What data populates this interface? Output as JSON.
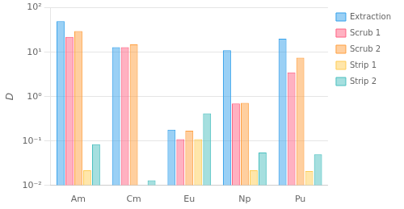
{
  "chart_data": {
    "type": "bar",
    "categories": [
      "Am",
      "Cm",
      "Eu",
      "Np",
      "Pu"
    ],
    "series": [
      {
        "name": "Extraction",
        "values": [
          50,
          13,
          0.18,
          11,
          20
        ]
      },
      {
        "name": "Scrub 1",
        "values": [
          22,
          13,
          0.11,
          0.7,
          3.5
        ]
      },
      {
        "name": "Scrub 2",
        "values": [
          30,
          15,
          0.17,
          0.72,
          7.5
        ]
      },
      {
        "name": "Strip 1",
        "values": [
          0.022,
          null,
          0.11,
          0.022,
          0.021
        ]
      },
      {
        "name": "Strip 2",
        "values": [
          0.085,
          0.013,
          0.42,
          0.055,
          0.05
        ]
      }
    ],
    "ylabel": "D",
    "ylim": [
      0.01,
      100
    ],
    "yticks": [
      {
        "value": 0.01,
        "label": "10⁻²"
      },
      {
        "value": 0.1,
        "label": "10⁻¹"
      },
      {
        "value": 1,
        "label": "10⁰"
      },
      {
        "value": 10,
        "label": "10¹"
      },
      {
        "value": 100,
        "label": "10²"
      }
    ],
    "log": "y",
    "grid": true,
    "legend": "upper right"
  }
}
